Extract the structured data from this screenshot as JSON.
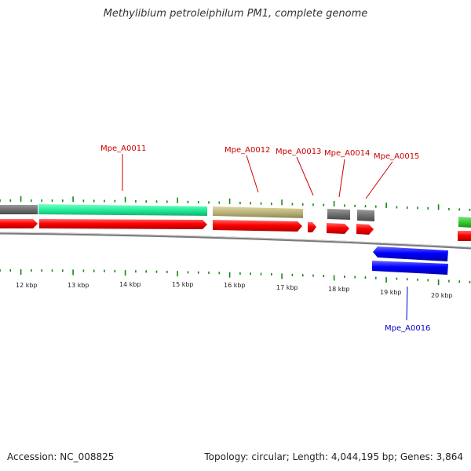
{
  "title": "Methylibium petroleiphilum PM1, complete genome",
  "footer": {
    "accession": "Accession: NC_008825",
    "topology": "Topology: circular; Length: 4,044,195 bp; Genes: 3,864"
  },
  "colors": {
    "label_red": "#cc0000",
    "label_blue": "#0000cc",
    "cds_red": "#ff0000",
    "cds_blue": "#0000ff",
    "cog_gray": "#707070",
    "cog_teal": "#22ee99",
    "cog_khaki": "#bcb47a",
    "cog_green": "#33cc33",
    "tick_green": "#118811",
    "backbone": "#888888"
  },
  "scale": {
    "tick_labels": [
      "12 kbp",
      "13 kbp",
      "14 kbp",
      "15 kbp",
      "16 kbp",
      "17 kbp",
      "18 kbp",
      "19 kbp",
      "20 kbp"
    ]
  },
  "genes": [
    {
      "name": "Mpe_A0011",
      "strand": "+"
    },
    {
      "name": "Mpe_A0012",
      "strand": "+"
    },
    {
      "name": "Mpe_A0013",
      "strand": "+"
    },
    {
      "name": "Mpe_A0014",
      "strand": "+"
    },
    {
      "name": "Mpe_A0015",
      "strand": "+"
    },
    {
      "name": "Mpe_A0016",
      "strand": "-"
    }
  ]
}
